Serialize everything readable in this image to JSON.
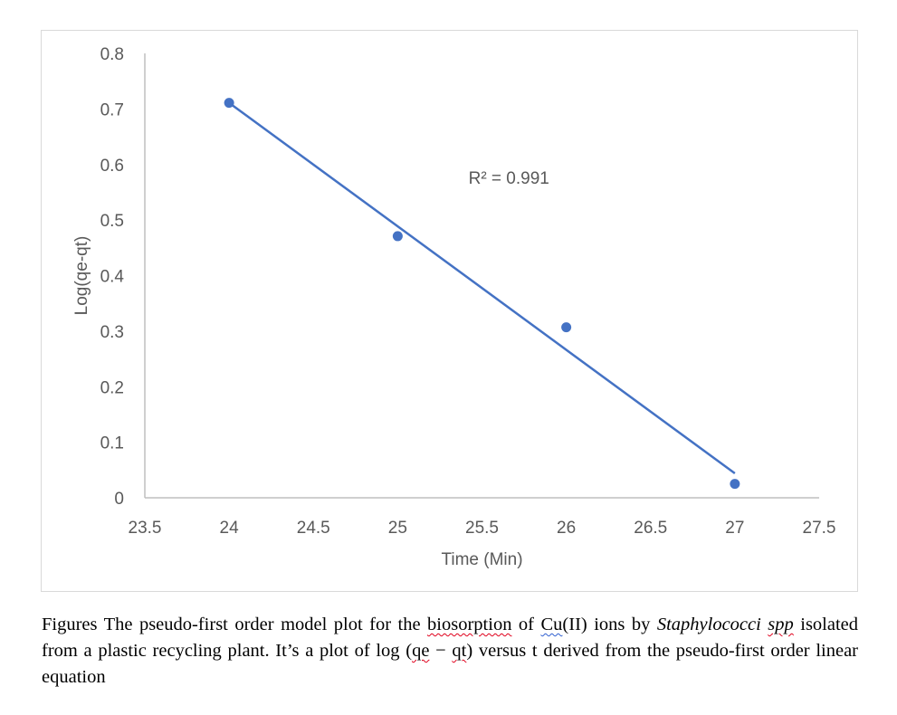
{
  "chart_data": {
    "type": "scatter",
    "title": "",
    "xlabel": "Time (Min)",
    "ylabel": "Log(qe-qt)",
    "xlim": [
      23.5,
      27.5
    ],
    "ylim": [
      0,
      0.8
    ],
    "xticks": [
      "23.5",
      "24",
      "24.5",
      "25",
      "25.5",
      "26",
      "26.5",
      "27",
      "27.5"
    ],
    "yticks": [
      "0",
      "0.1",
      "0.2",
      "0.3",
      "0.4",
      "0.5",
      "0.6",
      "0.7",
      "0.8"
    ],
    "series": [
      {
        "name": "Log(qe-qt)",
        "x": [
          24,
          25,
          26,
          27
        ],
        "y": [
          0.711,
          0.471,
          0.307,
          0.025
        ],
        "color": "#4472c4"
      }
    ],
    "trendline": {
      "type": "linear",
      "x": [
        24,
        27
      ],
      "y": [
        0.711,
        0.044
      ],
      "color": "#4472c4"
    },
    "annotation": "R² = 0.991",
    "grid": false
  },
  "caption": {
    "prefix": "Figures The pseudo-first order model plot for the ",
    "word_biosorption": "biosorption",
    "of": " of ",
    "word_cu": "Cu",
    "cu_rest": "(II) ions by ",
    "species": "Staphylococci",
    "space": " ",
    "spp": "spp",
    "middle": " isolated from a plastic recycling plant. It’s a plot of log (",
    "qe": "qe",
    "minus": " − ",
    "qt": "qt",
    "suffix": ") versus t derived from the pseudo-first order linear equation"
  }
}
